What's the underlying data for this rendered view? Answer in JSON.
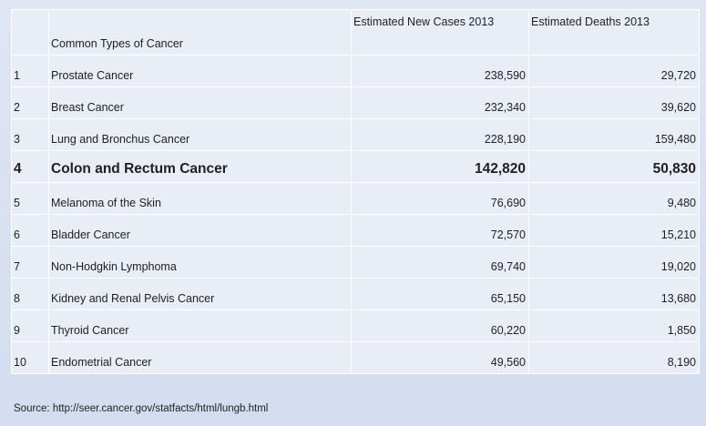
{
  "table": {
    "headers": {
      "index": "",
      "type": "Common Types of Cancer",
      "new_cases": "Estimated New Cases  2013",
      "deaths": "Estimated Deaths  2013"
    },
    "rows": [
      {
        "rank": "1",
        "type": "Prostate Cancer",
        "new_cases": "238,590",
        "deaths": "29,720"
      },
      {
        "rank": "2",
        "type": "Breast Cancer",
        "new_cases": "232,340",
        "deaths": "39,620"
      },
      {
        "rank": "3",
        "type": "Lung and Bronchus Cancer",
        "new_cases": "228,190",
        "deaths": "159,480"
      },
      {
        "rank": "4",
        "type": "Colon and Rectum Cancer",
        "new_cases": "142,820",
        "deaths": "50,830"
      },
      {
        "rank": "5",
        "type": "Melanoma of the Skin",
        "new_cases": "76,690",
        "deaths": "9,480"
      },
      {
        "rank": "6",
        "type": "Bladder Cancer",
        "new_cases": "72,570",
        "deaths": "15,210"
      },
      {
        "rank": "7",
        "type": "Non-Hodgkin Lymphoma",
        "new_cases": "69,740",
        "deaths": "19,020"
      },
      {
        "rank": "8",
        "type": "Kidney and Renal Pelvis Cancer",
        "new_cases": "65,150",
        "deaths": "13,680"
      },
      {
        "rank": "9",
        "type": "Thyroid Cancer",
        "new_cases": "60,220",
        "deaths": "1,850"
      },
      {
        "rank": "10",
        "type": "Endometrial Cancer",
        "new_cases": "49,560",
        "deaths": "8,190"
      }
    ],
    "highlighted_rank": "4"
  },
  "source": "Source: http://seer.cancer.gov/statfacts/html/lungb.html"
}
